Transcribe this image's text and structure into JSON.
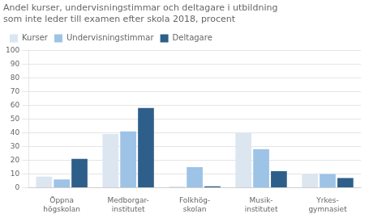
{
  "chart_data": {
    "type": "bar",
    "title": "Andel kurser, undervisningstimmar och deltagare i utbildning",
    "subtitle": "som inte leder till examen efter skola 2018, procent",
    "categories": [
      "Öppna\nhögskolan",
      "Medborgar-\ninstitutet",
      "Folkhög-\nskolan",
      "Musik-\ninstitutet",
      "Yrkes-\ngymnasiet"
    ],
    "series": [
      {
        "name": "Kurser",
        "color": "#dce6f1",
        "values": [
          8,
          39,
          1,
          40,
          10
        ]
      },
      {
        "name": "Undervisningstimmar",
        "color": "#9dc3e6",
        "values": [
          6,
          41,
          15,
          28,
          10
        ]
      },
      {
        "name": "Deltagare",
        "color": "#2e5f8a",
        "values": [
          21,
          58,
          1,
          12,
          7
        ]
      }
    ],
    "ylim": [
      0,
      100
    ],
    "yticks": [
      0,
      10,
      20,
      30,
      40,
      50,
      60,
      70,
      80,
      90,
      100
    ],
    "grid": true,
    "legend": "upper left"
  }
}
